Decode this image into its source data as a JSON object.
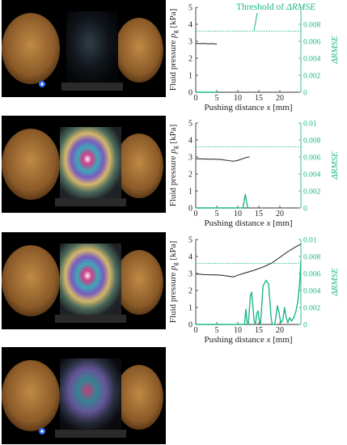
{
  "colors": {
    "pressure": "#333333",
    "rmse": "#1fb58a",
    "threshold": "#1fb58a",
    "photo_bg": "#000000"
  },
  "annotation": {
    "prefix": "Threshold of ",
    "symbol": "ΔRMSE"
  },
  "photos": [
    {
      "name": "frame-1",
      "film": "dark-clear"
    },
    {
      "name": "frame-2",
      "film": "rainbow"
    },
    {
      "name": "frame-3",
      "film": "rainbow-bright"
    },
    {
      "name": "frame-4",
      "film": "rainbow-dark"
    }
  ],
  "chart_data": [
    {
      "type": "line",
      "xlabel": "Pushing distance x [mm]",
      "ylabel": "Fluid pressure p_g [kPa]",
      "y2label": "ΔRMSE",
      "xlim": [
        0,
        25
      ],
      "ylim": [
        0,
        5
      ],
      "y2lim": [
        0,
        0.01
      ],
      "xticks": [
        "0",
        "5",
        "10",
        "15",
        "20"
      ],
      "yticks": [
        "0",
        "1",
        "2",
        "3",
        "4",
        "5"
      ],
      "y2ticks": [
        "0",
        "0.002",
        "0.004",
        "0.006",
        "0.008"
      ],
      "threshold": 0.0072,
      "series": [
        {
          "axis": "left",
          "x": [
            0,
            1,
            2,
            3,
            4,
            5
          ],
          "y": [
            2.88,
            2.86,
            2.87,
            2.85,
            2.86,
            2.83
          ]
        },
        {
          "axis": "right",
          "x": [
            0,
            5
          ],
          "y": [
            0,
            0
          ]
        }
      ]
    },
    {
      "type": "line",
      "xlabel": "Pushing distance x [mm]",
      "ylabel": "Fluid pressure p_g [kPa]",
      "y2label": "ΔRMSE",
      "xlim": [
        0,
        25
      ],
      "ylim": [
        0,
        5
      ],
      "y2lim": [
        0,
        0.01
      ],
      "xticks": [
        "0",
        "5",
        "10",
        "15",
        "20"
      ],
      "yticks": [
        "0",
        "1",
        "2",
        "3",
        "4",
        "5"
      ],
      "y2ticks": [
        "0",
        "0.002",
        "0.004",
        "0.006",
        "0.008",
        "0.01"
      ],
      "threshold": 0.0072,
      "series": [
        {
          "axis": "left",
          "x": [
            0,
            2,
            4,
            6,
            8,
            9,
            10,
            11,
            12,
            12.8
          ],
          "y": [
            2.9,
            2.88,
            2.87,
            2.85,
            2.78,
            2.75,
            2.8,
            2.88,
            2.97,
            3.0
          ]
        },
        {
          "axis": "right",
          "x": [
            0,
            11.2,
            11.5,
            11.8,
            12.1,
            12.4,
            12.8
          ],
          "y": [
            0,
            0,
            0.0008,
            0.0016,
            0.0006,
            0,
            0
          ]
        }
      ]
    },
    {
      "type": "line",
      "xlabel": "Pushing distance x [mm]",
      "ylabel": "Fluid pressure p_g [kPa]",
      "y2label": "ΔRMSE",
      "xlim": [
        0,
        25
      ],
      "ylim": [
        0,
        5
      ],
      "y2lim": [
        0,
        0.01
      ],
      "xticks": [
        "0",
        "5",
        "10",
        "15",
        "20"
      ],
      "yticks": [
        "0",
        "1",
        "2",
        "3",
        "4",
        "5"
      ],
      "y2ticks": [
        "0",
        "0.002",
        "0.004",
        "0.006",
        "0.008",
        "0.01"
      ],
      "threshold": 0.0072,
      "series": [
        {
          "axis": "left",
          "x": [
            0,
            2,
            4,
            6,
            8,
            9,
            10,
            12,
            14,
            16,
            18,
            20,
            22,
            24,
            25
          ],
          "y": [
            2.98,
            2.93,
            2.92,
            2.9,
            2.83,
            2.8,
            2.9,
            3.05,
            3.2,
            3.38,
            3.6,
            3.95,
            4.3,
            4.6,
            4.72
          ]
        },
        {
          "axis": "right",
          "x": [
            0,
            11.6,
            11.9,
            12.2,
            12.5,
            13.0,
            13.3,
            13.6,
            13.9,
            14.2,
            14.5,
            14.8,
            15.1,
            15.4,
            16.0,
            16.7,
            17.3,
            17.6,
            17.9,
            18.2,
            18.8,
            19.4,
            19.8,
            20.2,
            20.7,
            21.1,
            21.5,
            21.9,
            22.3,
            22.8,
            23.3,
            23.8,
            24.3,
            24.7,
            25.0
          ],
          "y": [
            0,
            0,
            0.0018,
            0.0003,
            0,
            0.0034,
            0.0038,
            0.002,
            0.0004,
            0,
            0.0012,
            0.0016,
            0.0005,
            0,
            0.0045,
            0.0052,
            0.0048,
            0.003,
            0.0008,
            0,
            0,
            0.0022,
            0.0014,
            0.0002,
            0.0005,
            0.002,
            0.0008,
            0.0002,
            0.0008,
            0.0004,
            0.0008,
            0.0015,
            0.0028,
            0.0048,
            0.0075
          ]
        }
      ]
    }
  ]
}
